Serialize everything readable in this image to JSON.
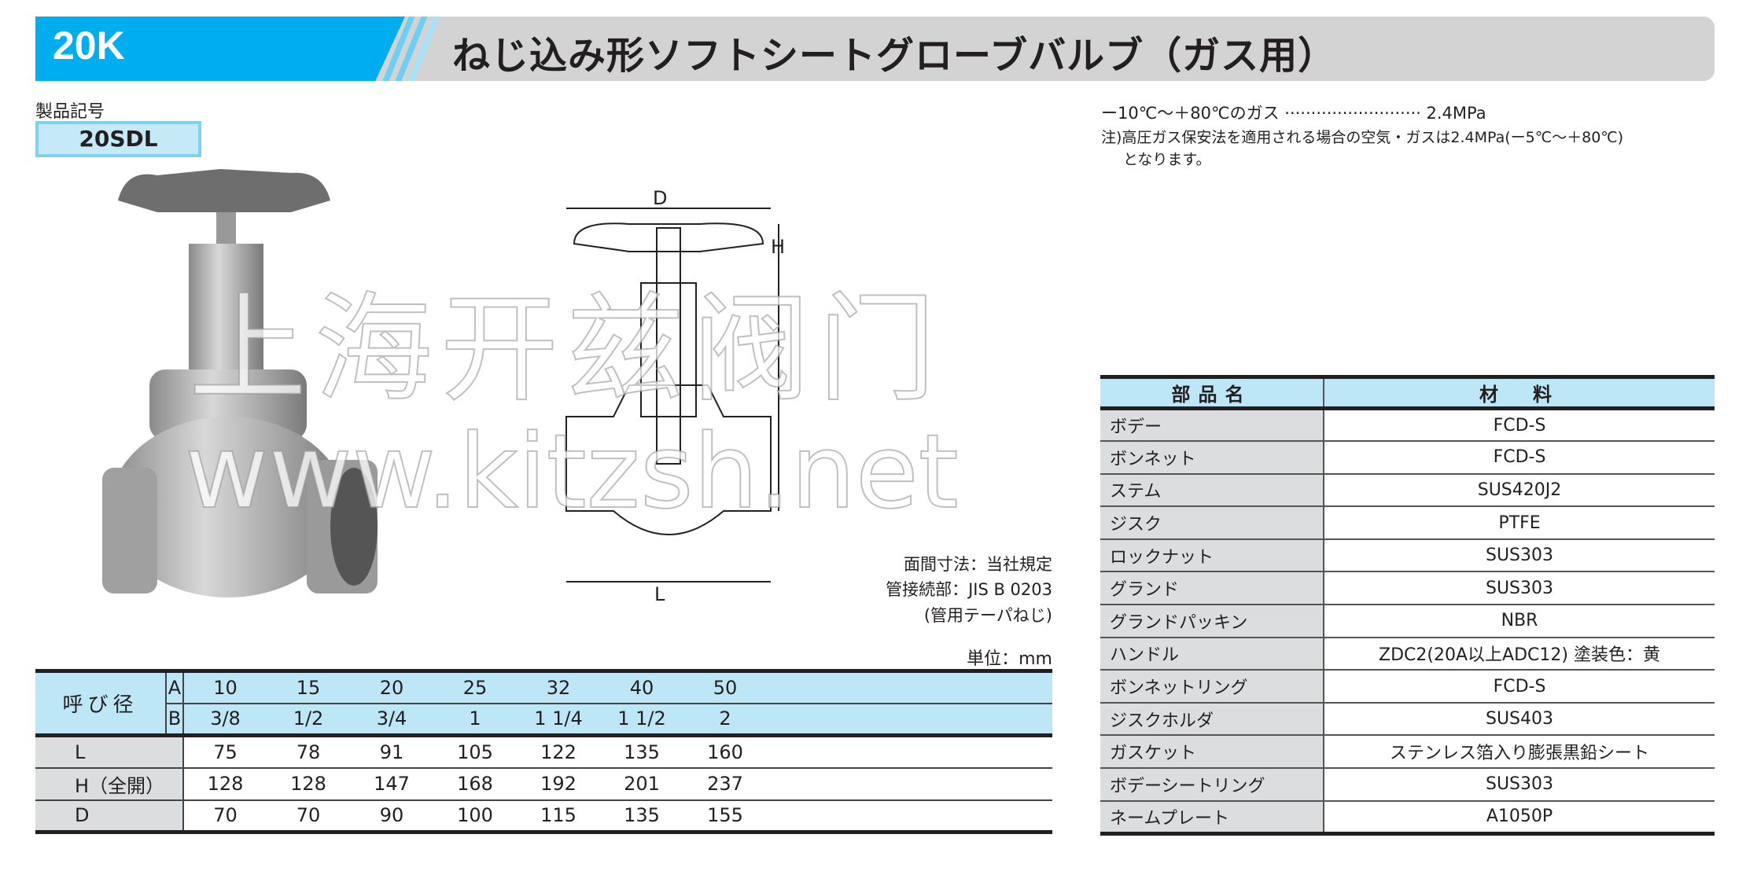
{
  "header": {
    "grade": "20K",
    "title": "ねじ込み形ソフトシートグローブバルブ（ガス用）"
  },
  "product_code": {
    "label": "製品記号",
    "value": "20SDL"
  },
  "spec": {
    "line": "ー10℃～＋80℃のガス ·························· 2.4MPa",
    "note_line1": "注)高圧ガス保安法を適用される場合の空気・ガスは2.4MPa(ー5℃～＋80℃)",
    "note_line2": "となります。"
  },
  "drawing": {
    "label_d": "D",
    "label_h": "H",
    "label_l": "L",
    "note1": "面間寸法：当社規定",
    "note2": "管接続部：JIS B 0203",
    "note3": "(管用テーパねじ)"
  },
  "watermark": {
    "line1": "上海开兹阀门",
    "line2": "www.kitzsh.net"
  },
  "dimensions": {
    "unit": "単位：mm",
    "nominal_label": "呼び径",
    "row_a_label": "A",
    "row_b_label": "B",
    "a": [
      "10",
      "15",
      "20",
      "25",
      "32",
      "40",
      "50"
    ],
    "b": [
      "3/8",
      "1/2",
      "3/4",
      "1",
      "1 1/4",
      "1 1/2",
      "2"
    ],
    "rows": [
      {
        "label": "L",
        "values": [
          "75",
          "78",
          "91",
          "105",
          "122",
          "135",
          "160"
        ]
      },
      {
        "label": "H（全開）",
        "values": [
          "128",
          "128",
          "147",
          "168",
          "192",
          "201",
          "237"
        ]
      },
      {
        "label": "D",
        "values": [
          "70",
          "70",
          "90",
          "100",
          "115",
          "135",
          "155"
        ]
      }
    ]
  },
  "parts": {
    "headers": [
      "部品名",
      "材　料"
    ],
    "rows": [
      {
        "name": "ボデー",
        "material": "FCD-S"
      },
      {
        "name": "ボンネット",
        "material": "FCD-S"
      },
      {
        "name": "ステム",
        "material": "SUS420J2"
      },
      {
        "name": "ジスク",
        "material": "PTFE"
      },
      {
        "name": "ロックナット",
        "material": "SUS303"
      },
      {
        "name": "グランド",
        "material": "SUS303"
      },
      {
        "name": "グランドパッキン",
        "material": "NBR"
      },
      {
        "name": "ハンドル",
        "material": "ZDC2(20A以上ADC12) 塗装色：黄"
      },
      {
        "name": "ボンネットリング",
        "material": "FCD-S"
      },
      {
        "name": "ジスクホルダ",
        "material": "SUS403"
      },
      {
        "name": "ガスケット",
        "material": "ステンレス箔入り膨張黒鉛シート"
      },
      {
        "name": "ボデーシートリング",
        "material": "SUS303"
      },
      {
        "name": "ネームプレート",
        "material": "A1050P"
      }
    ]
  },
  "colors": {
    "brand_blue": "#00aeef",
    "header_gray": "#d3d3d3",
    "table_blue": "#bde6f7",
    "label_gray": "#dcdddf"
  }
}
